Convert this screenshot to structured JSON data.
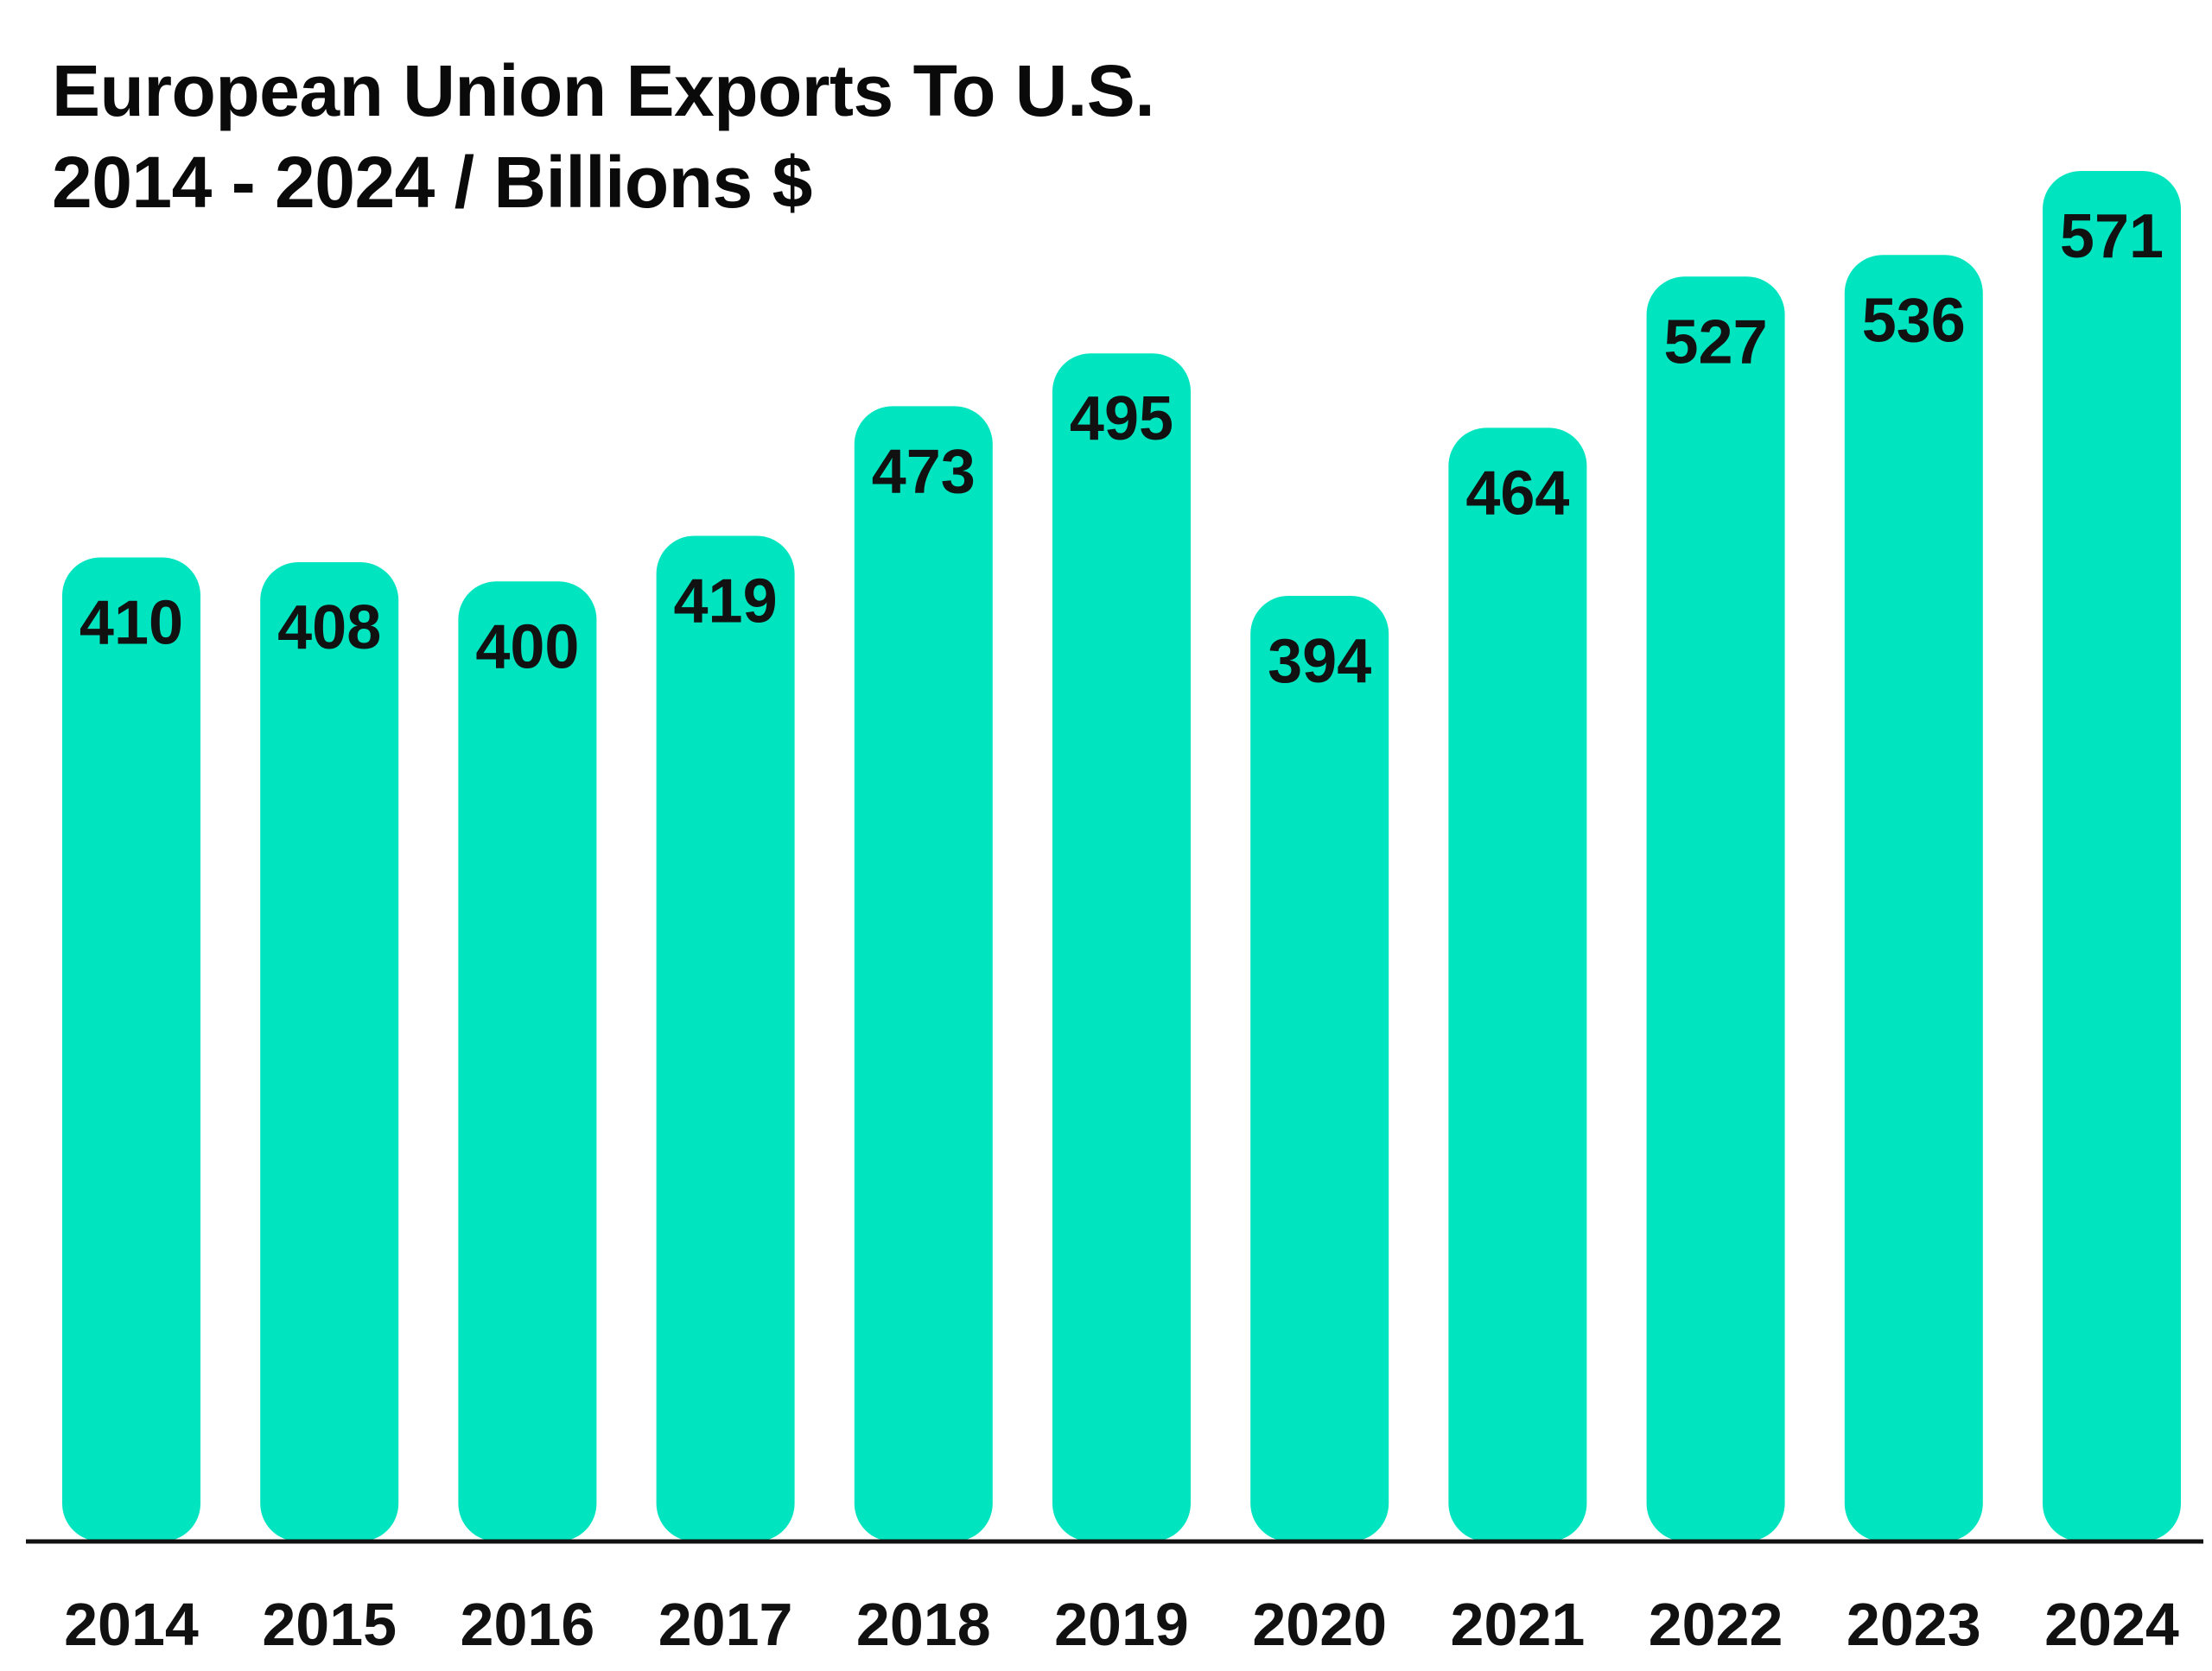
{
  "chart_data": {
    "type": "bar",
    "title": "European Union Exports To U.S.",
    "subtitle": "2014 - 2024 / Billions $",
    "categories": [
      "2014",
      "2015",
      "2016",
      "2017",
      "2018",
      "2019",
      "2020",
      "2021",
      "2022",
      "2023",
      "2024"
    ],
    "values": [
      410,
      408,
      400,
      419,
      473,
      495,
      394,
      464,
      527,
      536,
      571
    ],
    "xlabel": "",
    "ylabel": "",
    "ylim": [
      0,
      571
    ],
    "grid": false,
    "legend": "none",
    "bar_color": "#00E5C0",
    "axis_color": "#111111",
    "text_color": "#111111"
  }
}
